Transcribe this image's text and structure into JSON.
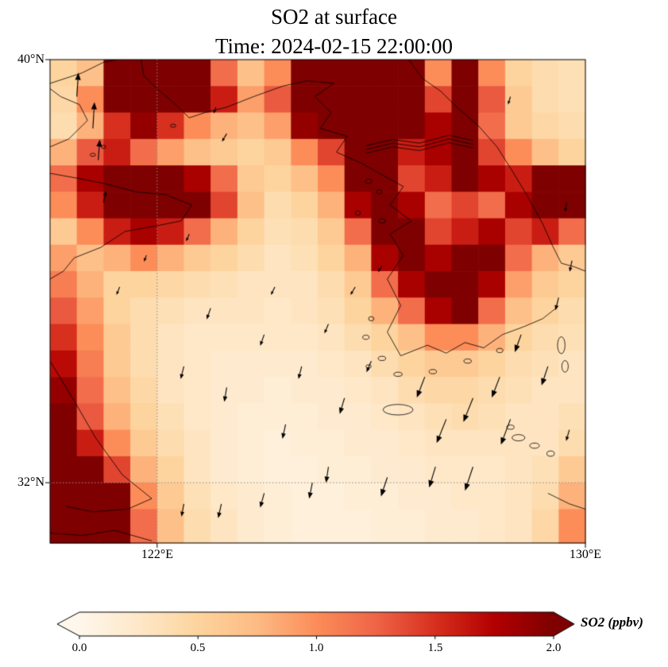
{
  "figure": {
    "title_line1": "SO2 at surface",
    "title_line2": "Time: 2024-02-15 22:00:00"
  },
  "axes": {
    "xticks": [
      {
        "lon": 122,
        "label": "122°E"
      },
      {
        "lon": 130,
        "label": "130°E"
      }
    ],
    "yticks": [
      {
        "lat": 40,
        "label": "40°N"
      },
      {
        "lat": 32,
        "label": "32°N"
      }
    ],
    "gridlines": {
      "lon": [
        122
      ],
      "lat": [
        32
      ]
    }
  },
  "chart_data": {
    "type": "heatmap",
    "title": "SO2 at surface",
    "subtitle": "Time: 2024-02-15 22:00:00",
    "variable": "SO2",
    "units": "ppbv",
    "lon_range": [
      120,
      130
    ],
    "lat_range": [
      30.86,
      40
    ],
    "grid_lon_step": 0.5,
    "grid_lat_step": 0.5,
    "row_order": "north_to_south",
    "values": [
      [
        0.5,
        0.7,
        2.2,
        2.2,
        2.2,
        2.2,
        1.2,
        0.7,
        1.0,
        2.2,
        2.2,
        2.2,
        2.2,
        2.2,
        1.0,
        2.0,
        1.0,
        0.5,
        0.4,
        0.35
      ],
      [
        0.45,
        1.0,
        2.2,
        2.2,
        2.2,
        2.2,
        1.6,
        0.9,
        1.3,
        2.2,
        2.2,
        2.2,
        2.2,
        2.2,
        1.4,
        2.2,
        1.3,
        0.6,
        0.4,
        0.35
      ],
      [
        0.4,
        0.8,
        1.5,
        1.9,
        1.5,
        1.0,
        0.8,
        0.7,
        0.9,
        1.9,
        2.2,
        2.2,
        2.2,
        2.2,
        1.8,
        2.2,
        1.2,
        0.6,
        0.45,
        0.4
      ],
      [
        0.8,
        1.3,
        1.6,
        1.2,
        0.9,
        0.7,
        0.6,
        0.5,
        0.6,
        1.0,
        1.4,
        2.2,
        2.2,
        1.6,
        1.8,
        2.2,
        1.4,
        1.0,
        0.7,
        0.5
      ],
      [
        1.2,
        1.8,
        2.2,
        2.2,
        2.2,
        1.8,
        1.2,
        0.6,
        0.5,
        0.7,
        1.0,
        2.2,
        2.2,
        1.4,
        1.6,
        2.2,
        1.8,
        1.6,
        2.0,
        2.2
      ],
      [
        1.0,
        1.6,
        2.2,
        2.2,
        2.2,
        2.2,
        1.4,
        0.7,
        0.4,
        0.5,
        0.8,
        1.8,
        2.2,
        1.8,
        1.2,
        1.4,
        1.2,
        1.8,
        2.2,
        2.2
      ],
      [
        0.6,
        1.0,
        1.6,
        1.8,
        1.6,
        1.2,
        0.8,
        0.5,
        0.35,
        0.4,
        0.6,
        1.2,
        2.2,
        2.2,
        1.4,
        1.6,
        1.8,
        1.4,
        1.6,
        1.2
      ],
      [
        0.9,
        0.7,
        0.8,
        1.0,
        0.8,
        0.6,
        0.5,
        0.4,
        0.3,
        0.35,
        0.5,
        0.8,
        1.8,
        2.2,
        1.8,
        2.0,
        2.2,
        1.2,
        0.8,
        0.6
      ],
      [
        1.1,
        0.8,
        0.5,
        0.5,
        0.45,
        0.4,
        0.35,
        0.3,
        0.3,
        0.3,
        0.4,
        0.6,
        1.2,
        1.8,
        2.2,
        2.2,
        1.8,
        0.9,
        0.6,
        0.5
      ],
      [
        1.3,
        0.9,
        0.5,
        0.4,
        0.35,
        0.3,
        0.3,
        0.3,
        0.25,
        0.3,
        0.35,
        0.5,
        0.8,
        1.2,
        1.8,
        2.0,
        1.2,
        0.7,
        0.5,
        0.4
      ],
      [
        1.5,
        1.0,
        0.6,
        0.4,
        0.3,
        0.25,
        0.25,
        0.25,
        0.25,
        0.25,
        0.3,
        0.4,
        0.5,
        0.7,
        1.0,
        1.0,
        0.8,
        0.5,
        0.4,
        0.35
      ],
      [
        1.7,
        1.1,
        0.6,
        0.4,
        0.3,
        0.25,
        0.2,
        0.2,
        0.2,
        0.2,
        0.25,
        0.3,
        0.4,
        0.5,
        0.6,
        0.6,
        0.5,
        0.4,
        0.35,
        0.3
      ],
      [
        1.9,
        1.2,
        0.7,
        0.45,
        0.3,
        0.25,
        0.2,
        0.2,
        0.15,
        0.2,
        0.2,
        0.25,
        0.3,
        0.4,
        0.45,
        0.45,
        0.4,
        0.35,
        0.3,
        0.3
      ],
      [
        2.0,
        1.3,
        0.8,
        0.5,
        0.35,
        0.25,
        0.2,
        0.15,
        0.15,
        0.15,
        0.2,
        0.2,
        0.25,
        0.3,
        0.35,
        0.4,
        0.35,
        0.3,
        0.3,
        0.35
      ],
      [
        2.2,
        1.6,
        1.0,
        0.6,
        0.4,
        0.3,
        0.2,
        0.15,
        0.12,
        0.15,
        0.15,
        0.2,
        0.2,
        0.25,
        0.3,
        0.3,
        0.3,
        0.3,
        0.3,
        0.4
      ],
      [
        2.2,
        2.2,
        1.4,
        0.8,
        0.5,
        0.3,
        0.2,
        0.15,
        0.12,
        0.12,
        0.15,
        0.15,
        0.2,
        0.2,
        0.25,
        0.25,
        0.25,
        0.3,
        0.35,
        0.6
      ],
      [
        2.2,
        2.2,
        2.0,
        1.0,
        0.6,
        0.35,
        0.25,
        0.2,
        0.15,
        0.12,
        0.12,
        0.15,
        0.15,
        0.2,
        0.2,
        0.25,
        0.25,
        0.3,
        0.4,
        0.8
      ],
      [
        2.2,
        2.2,
        2.2,
        1.2,
        0.7,
        0.4,
        0.3,
        0.2,
        0.15,
        0.12,
        0.12,
        0.12,
        0.15,
        0.15,
        0.2,
        0.2,
        0.25,
        0.3,
        0.45,
        1.0
      ]
    ],
    "colormap": {
      "name": "OrRd",
      "stops": [
        [
          0.0,
          "#fff7ec"
        ],
        [
          0.125,
          "#fee8c8"
        ],
        [
          0.25,
          "#fdd49e"
        ],
        [
          0.375,
          "#fdbb84"
        ],
        [
          0.5,
          "#fc8d59"
        ],
        [
          0.625,
          "#ef6548"
        ],
        [
          0.75,
          "#d7301f"
        ],
        [
          0.875,
          "#b30000"
        ],
        [
          1.0,
          "#7f0000"
        ]
      ],
      "under": "#fff7ec",
      "over": "#7f0000"
    },
    "colorbar": {
      "vmin": 0,
      "vmax": 2,
      "ticks": [
        0,
        0.5,
        1,
        1.5,
        2
      ],
      "tick_labels": [
        "0.0",
        "0.5",
        "1.0",
        "1.5",
        "2.0"
      ],
      "label": "SO2 (ppbv)",
      "extend": "both"
    },
    "wind_quiver": [
      {
        "lon": 120.5,
        "lat": 39.3,
        "u": 2,
        "v": 30
      },
      {
        "lon": 120.8,
        "lat": 38.7,
        "u": 2,
        "v": 33
      },
      {
        "lon": 120.9,
        "lat": 38.1,
        "u": 2,
        "v": 26
      },
      {
        "lon": 121.0,
        "lat": 37.3,
        "u": 3,
        "v": 14
      },
      {
        "lon": 121.3,
        "lat": 35.7,
        "u": -4,
        "v": -10
      },
      {
        "lon": 121.8,
        "lat": 36.3,
        "u": -3,
        "v": -8
      },
      {
        "lon": 122.6,
        "lat": 36.7,
        "u": -4,
        "v": -9
      },
      {
        "lon": 123.3,
        "lat": 38.6,
        "u": -6,
        "v": -10
      },
      {
        "lon": 123.0,
        "lat": 35.3,
        "u": -5,
        "v": -14
      },
      {
        "lon": 122.5,
        "lat": 34.2,
        "u": -4,
        "v": -16
      },
      {
        "lon": 123.3,
        "lat": 33.8,
        "u": -3,
        "v": -18
      },
      {
        "lon": 124.0,
        "lat": 34.8,
        "u": -5,
        "v": -14
      },
      {
        "lon": 124.2,
        "lat": 35.7,
        "u": -5,
        "v": -10
      },
      {
        "lon": 124.7,
        "lat": 34.2,
        "u": -4,
        "v": -16
      },
      {
        "lon": 125.2,
        "lat": 35.0,
        "u": -5,
        "v": -12
      },
      {
        "lon": 125.5,
        "lat": 33.6,
        "u": -6,
        "v": -20
      },
      {
        "lon": 124.4,
        "lat": 33.1,
        "u": -4,
        "v": -18
      },
      {
        "lon": 125.2,
        "lat": 32.3,
        "u": -3,
        "v": -20
      },
      {
        "lon": 126.0,
        "lat": 34.3,
        "u": -6,
        "v": -14
      },
      {
        "lon": 125.7,
        "lat": 35.7,
        "u": -6,
        "v": -10
      },
      {
        "lon": 126.2,
        "lat": 36.1,
        "u": -5,
        "v": -8
      },
      {
        "lon": 122.5,
        "lat": 31.6,
        "u": -3,
        "v": -16
      },
      {
        "lon": 123.2,
        "lat": 31.6,
        "u": -4,
        "v": -18
      },
      {
        "lon": 124.0,
        "lat": 31.8,
        "u": -5,
        "v": -18
      },
      {
        "lon": 124.9,
        "lat": 32.0,
        "u": -4,
        "v": -20
      },
      {
        "lon": 126.3,
        "lat": 32.1,
        "u": -8,
        "v": -24
      },
      {
        "lon": 127.0,
        "lat": 34.0,
        "u": -10,
        "v": -26
      },
      {
        "lon": 127.4,
        "lat": 33.2,
        "u": -12,
        "v": -30
      },
      {
        "lon": 127.9,
        "lat": 33.6,
        "u": -12,
        "v": -30
      },
      {
        "lon": 128.4,
        "lat": 34.0,
        "u": -10,
        "v": -26
      },
      {
        "lon": 128.6,
        "lat": 33.2,
        "u": -12,
        "v": -32
      },
      {
        "lon": 127.9,
        "lat": 32.3,
        "u": -10,
        "v": -30
      },
      {
        "lon": 127.2,
        "lat": 32.3,
        "u": -8,
        "v": -26
      },
      {
        "lon": 128.8,
        "lat": 34.8,
        "u": -8,
        "v": -22
      },
      {
        "lon": 129.3,
        "lat": 34.2,
        "u": -8,
        "v": -24
      },
      {
        "lon": 129.65,
        "lat": 37.3,
        "u": -2,
        "v": -12
      },
      {
        "lon": 129.75,
        "lat": 36.2,
        "u": -3,
        "v": -14
      },
      {
        "lon": 129.5,
        "lat": 35.5,
        "u": -4,
        "v": -16
      },
      {
        "lon": 129.7,
        "lat": 33.0,
        "u": -4,
        "v": -14
      },
      {
        "lon": 123.1,
        "lat": 39.1,
        "u": -3,
        "v": -8
      },
      {
        "lon": 128.6,
        "lat": 39.3,
        "u": -3,
        "v": -10
      }
    ],
    "coastlines": [
      [
        [
          120.0,
          39.45
        ],
        [
          120.2,
          39.3
        ],
        [
          120.55,
          39.15
        ],
        [
          120.7,
          38.85
        ],
        [
          120.35,
          38.5
        ],
        [
          120.0,
          38.35
        ]
      ],
      [
        [
          120.0,
          39.55
        ],
        [
          120.6,
          39.75
        ],
        [
          121.0,
          39.95
        ],
        [
          121.25,
          40.0
        ]
      ],
      [
        [
          121.7,
          40.0
        ],
        [
          121.75,
          39.7
        ],
        [
          122.0,
          39.45
        ],
        [
          122.35,
          39.15
        ],
        [
          122.6,
          38.9
        ],
        [
          122.9,
          39.0
        ],
        [
          123.3,
          39.1
        ],
        [
          123.8,
          39.3
        ],
        [
          124.35,
          39.5
        ],
        [
          124.8,
          39.6
        ],
        [
          125.3,
          39.55
        ]
      ],
      [
        [
          125.3,
          39.55
        ],
        [
          124.95,
          39.3
        ],
        [
          125.25,
          39.0
        ],
        [
          125.05,
          38.7
        ],
        [
          125.55,
          38.55
        ],
        [
          125.35,
          38.25
        ],
        [
          125.8,
          38.05
        ],
        [
          126.15,
          37.85
        ],
        [
          126.6,
          37.6
        ],
        [
          126.35,
          37.25
        ],
        [
          126.75,
          36.95
        ],
        [
          126.35,
          36.7
        ],
        [
          126.6,
          36.3
        ],
        [
          126.3,
          35.85
        ],
        [
          126.55,
          35.35
        ],
        [
          126.3,
          34.85
        ],
        [
          126.55,
          34.4
        ],
        [
          127.05,
          34.6
        ],
        [
          127.4,
          34.45
        ],
        [
          127.75,
          34.65
        ],
        [
          128.1,
          34.55
        ],
        [
          128.45,
          34.8
        ],
        [
          128.85,
          34.95
        ],
        [
          129.2,
          35.1
        ],
        [
          129.45,
          35.3
        ]
      ],
      [
        [
          126.7,
          40.0
        ],
        [
          126.95,
          39.65
        ],
        [
          127.3,
          39.4
        ],
        [
          127.6,
          39.1
        ],
        [
          128.0,
          38.75
        ],
        [
          128.35,
          38.35
        ],
        [
          128.6,
          37.95
        ],
        [
          128.9,
          37.45
        ],
        [
          129.2,
          36.9
        ],
        [
          129.4,
          36.45
        ],
        [
          129.55,
          36.15
        ],
        [
          129.8,
          36.08
        ],
        [
          130.0,
          36.0
        ]
      ],
      [
        [
          125.9,
          38.3
        ],
        [
          126.4,
          38.42
        ],
        [
          126.9,
          38.35
        ],
        [
          127.45,
          38.5
        ],
        [
          127.9,
          38.4
        ]
      ],
      [
        [
          125.9,
          38.23
        ],
        [
          126.4,
          38.35
        ],
        [
          126.9,
          38.28
        ],
        [
          127.45,
          38.43
        ],
        [
          127.9,
          38.33
        ]
      ],
      [
        [
          125.9,
          38.37
        ],
        [
          126.4,
          38.49
        ],
        [
          126.9,
          38.42
        ],
        [
          127.45,
          38.57
        ],
        [
          127.9,
          38.47
        ]
      ],
      [
        [
          120.0,
          37.85
        ],
        [
          120.55,
          37.75
        ],
        [
          121.05,
          37.65
        ],
        [
          121.6,
          37.5
        ],
        [
          122.15,
          37.45
        ],
        [
          122.65,
          37.25
        ],
        [
          122.45,
          36.95
        ],
        [
          121.95,
          36.85
        ],
        [
          121.4,
          36.75
        ],
        [
          120.95,
          36.45
        ],
        [
          120.45,
          36.25
        ],
        [
          120.25,
          36.0
        ],
        [
          120.0,
          35.85
        ]
      ],
      [
        [
          120.0,
          34.3
        ],
        [
          120.45,
          33.55
        ],
        [
          120.85,
          32.85
        ],
        [
          121.35,
          32.15
        ],
        [
          121.9,
          31.7
        ],
        [
          121.45,
          31.5
        ],
        [
          120.8,
          31.45
        ],
        [
          120.3,
          31.55
        ]
      ],
      [
        [
          120.0,
          31.05
        ],
        [
          120.6,
          31.0
        ],
        [
          121.2,
          31.1
        ],
        [
          121.9,
          30.9
        ]
      ],
      [
        [
          129.3,
          31.8
        ],
        [
          129.7,
          31.6
        ],
        [
          130.0,
          31.5
        ]
      ]
    ],
    "islands": [
      [
        126.5,
        33.38,
        0.28,
        0.1
      ],
      [
        129.55,
        34.6,
        0.07,
        0.16
      ],
      [
        129.62,
        34.2,
        0.06,
        0.11
      ],
      [
        128.75,
        32.85,
        0.12,
        0.06
      ],
      [
        129.05,
        32.7,
        0.09,
        0.05
      ],
      [
        128.6,
        33.05,
        0.07,
        0.04
      ],
      [
        129.35,
        32.55,
        0.07,
        0.05
      ],
      [
        125.95,
        37.7,
        0.06,
        0.04
      ],
      [
        126.15,
        37.5,
        0.05,
        0.04
      ],
      [
        125.75,
        37.1,
        0.05,
        0.04
      ],
      [
        126.2,
        36.95,
        0.06,
        0.04
      ],
      [
        126.0,
        35.1,
        0.05,
        0.04
      ],
      [
        125.9,
        34.75,
        0.06,
        0.04
      ],
      [
        126.2,
        34.35,
        0.07,
        0.04
      ],
      [
        125.95,
        34.2,
        0.05,
        0.03
      ],
      [
        126.5,
        34.05,
        0.08,
        0.04
      ],
      [
        127.15,
        34.1,
        0.07,
        0.04
      ],
      [
        127.8,
        34.3,
        0.07,
        0.04
      ],
      [
        128.4,
        34.5,
        0.06,
        0.04
      ],
      [
        120.8,
        38.2,
        0.05,
        0.03
      ],
      [
        121.0,
        38.35,
        0.04,
        0.03
      ],
      [
        122.3,
        38.75,
        0.05,
        0.03
      ]
    ]
  }
}
